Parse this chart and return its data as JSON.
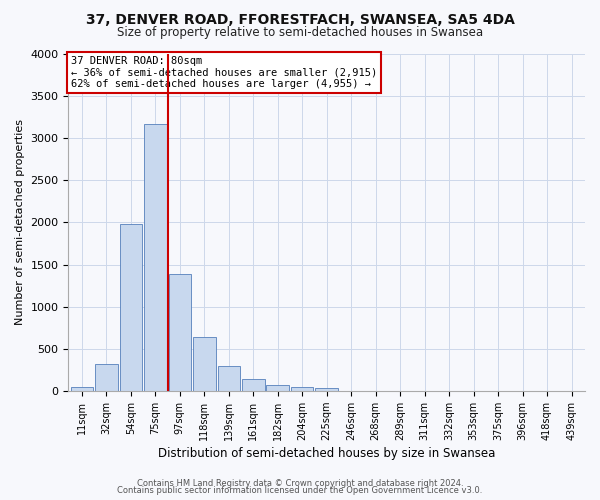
{
  "title": "37, DENVER ROAD, FFORESTFACH, SWANSEA, SA5 4DA",
  "subtitle": "Size of property relative to semi-detached houses in Swansea",
  "xlabel": "Distribution of semi-detached houses by size in Swansea",
  "ylabel": "Number of semi-detached properties",
  "bar_color": "#c8d8ee",
  "bar_edge_color": "#5580bb",
  "bin_labels": [
    "11sqm",
    "32sqm",
    "54sqm",
    "75sqm",
    "97sqm",
    "118sqm",
    "139sqm",
    "161sqm",
    "182sqm",
    "204sqm",
    "225sqm",
    "246sqm",
    "268sqm",
    "289sqm",
    "311sqm",
    "332sqm",
    "353sqm",
    "375sqm",
    "396sqm",
    "418sqm",
    "439sqm"
  ],
  "bar_values": [
    45,
    320,
    1980,
    3170,
    1390,
    635,
    295,
    135,
    75,
    45,
    30,
    0,
    0,
    0,
    0,
    0,
    0,
    0,
    0,
    0,
    0
  ],
  "vline_x": 3.5,
  "vline_color": "#cc0000",
  "ylim": [
    0,
    4000
  ],
  "yticks": [
    0,
    500,
    1000,
    1500,
    2000,
    2500,
    3000,
    3500,
    4000
  ],
  "annotation_title": "37 DENVER ROAD: 80sqm",
  "annotation_line1": "← 36% of semi-detached houses are smaller (2,915)",
  "annotation_line2": "62% of semi-detached houses are larger (4,955) →",
  "footer1": "Contains HM Land Registry data © Crown copyright and database right 2024.",
  "footer2": "Contains public sector information licensed under the Open Government Licence v3.0.",
  "bg_color": "#f7f8fc",
  "grid_color": "#cdd8ea"
}
